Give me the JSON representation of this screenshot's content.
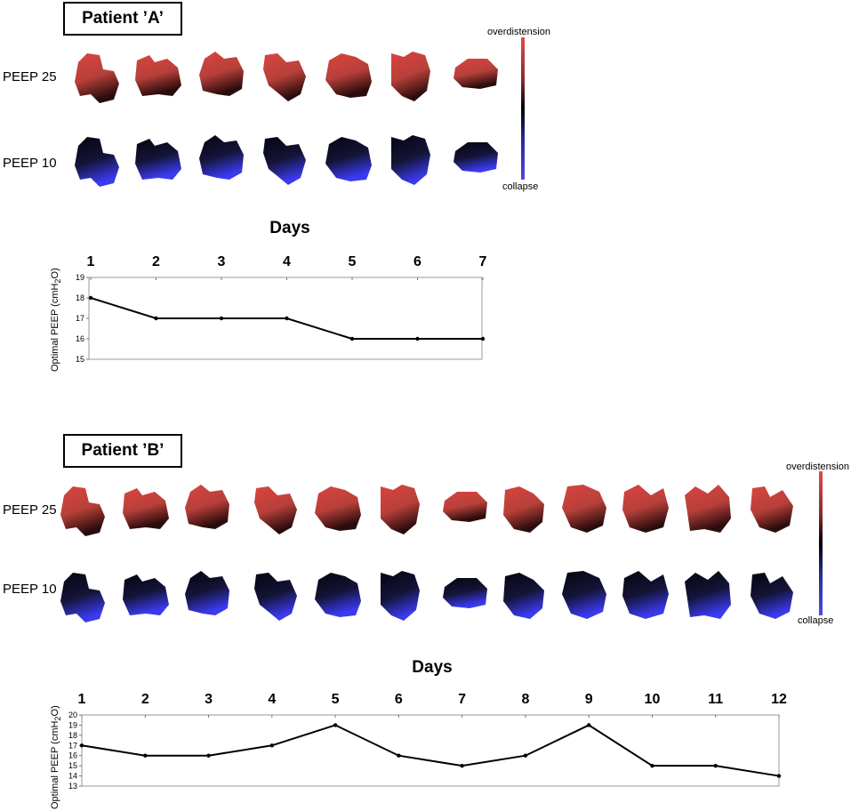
{
  "panels": [
    {
      "patient_label": "Patient ’A’",
      "row_labels": [
        "PEEP 25",
        "PEEP 10"
      ],
      "scale": {
        "top": "overdistension",
        "bottom": "collapse"
      },
      "days_title": "Days",
      "y_axis_title": "Optimal PEEP (cmH",
      "y_axis_sub": "2",
      "y_axis_tail": "O)",
      "colors": {
        "overdistension": "#d9443f",
        "collapse": "#3a3af0",
        "neutral": "#000000"
      }
    },
    {
      "patient_label": "Patient ’B’",
      "row_labels": [
        "PEEP 25",
        "PEEP 10"
      ],
      "scale": {
        "top": "overdistension",
        "bottom": "collapse"
      },
      "days_title": "Days",
      "y_axis_title": "Optimal PEEP (cmH",
      "y_axis_sub": "2",
      "y_axis_tail": "O)",
      "colors": {
        "overdistension": "#d9443f",
        "collapse": "#3a3af0",
        "neutral": "#000000"
      }
    }
  ],
  "chart_data": [
    {
      "type": "line",
      "x": [
        "1",
        "2",
        "3",
        "4",
        "5",
        "6",
        "7"
      ],
      "series": [
        {
          "values": [
            18,
            17,
            17,
            17,
            16,
            16,
            16
          ]
        }
      ],
      "xlabel": "Days",
      "ylabel": "Optimal PEEP (cmH2O)",
      "ylim": [
        15,
        19
      ],
      "yticks": [
        "15",
        "16",
        "17",
        "18",
        "19"
      ]
    },
    {
      "type": "line",
      "x": [
        "1",
        "2",
        "3",
        "4",
        "5",
        "6",
        "7",
        "8",
        "9",
        "10",
        "11",
        "12"
      ],
      "series": [
        {
          "values": [
            17,
            16,
            16,
            17,
            19,
            16,
            15,
            16,
            19,
            15,
            15,
            14
          ]
        }
      ],
      "xlabel": "Days",
      "ylabel": "Optimal PEEP (cmH2O)",
      "ylim": [
        13,
        20
      ],
      "yticks": [
        "13",
        "14",
        "15",
        "16",
        "17",
        "18",
        "19",
        "20"
      ]
    }
  ]
}
